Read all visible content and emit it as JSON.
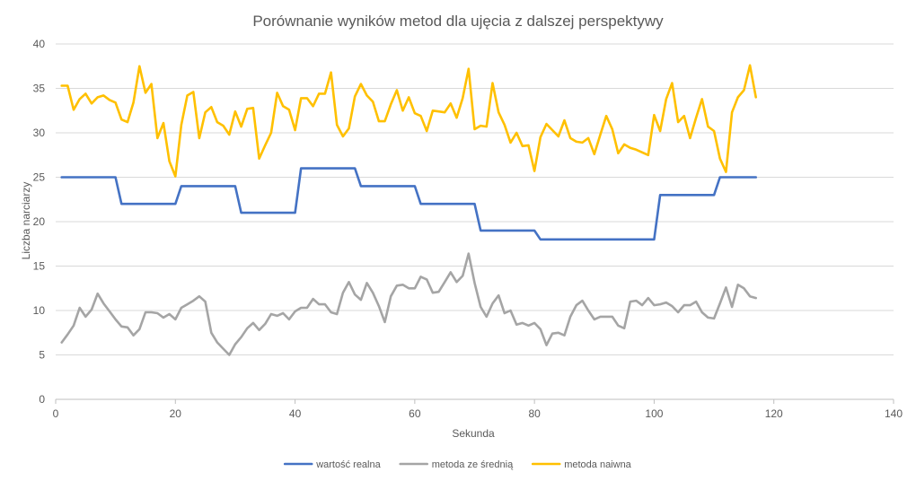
{
  "chart_data": {
    "type": "scatter",
    "title": "Porównanie wyników metod dla ujęcia z dalszej perspektywy",
    "xlabel": "Sekunda",
    "ylabel": "Liczba narciarzy",
    "xlim": [
      0,
      140
    ],
    "ylim": [
      0,
      40
    ],
    "x_ticks": [
      "0",
      "20",
      "40",
      "60",
      "80",
      "100",
      "120",
      "140"
    ],
    "y_ticks": [
      "0",
      "5",
      "10",
      "15",
      "20",
      "25",
      "30",
      "35",
      "40"
    ],
    "grid": "horizontal",
    "legend_position": "bottom",
    "series": [
      {
        "name": "wartość realna",
        "color": "#4472C4",
        "x": [
          1,
          10,
          11,
          20,
          21,
          30,
          31,
          40,
          41,
          50,
          51,
          60,
          61,
          70,
          71,
          80,
          81,
          100,
          101,
          110,
          111,
          117
        ],
        "y": [
          25,
          25,
          22,
          22,
          24,
          24,
          21,
          21,
          26,
          26,
          24,
          24,
          22,
          22,
          19,
          19,
          18,
          18,
          23,
          23,
          25,
          25
        ]
      },
      {
        "name": "metoda ze średnią",
        "color": "#A5A5A5",
        "x": [
          1,
          2,
          3,
          4,
          5,
          6,
          7,
          8,
          9,
          10,
          11,
          12,
          13,
          14,
          15,
          16,
          17,
          18,
          19,
          20,
          21,
          22,
          23,
          24,
          25,
          26,
          27,
          28,
          29,
          30,
          31,
          32,
          33,
          34,
          35,
          36,
          37,
          38,
          39,
          40,
          41,
          42,
          43,
          44,
          45,
          46,
          47,
          48,
          49,
          50,
          51,
          52,
          53,
          54,
          55,
          56,
          57,
          58,
          59,
          60,
          61,
          62,
          63,
          64,
          65,
          66,
          67,
          68,
          69,
          70,
          71,
          72,
          73,
          74,
          75,
          76,
          77,
          78,
          79,
          80,
          81,
          82,
          83,
          84,
          85,
          86,
          87,
          88,
          89,
          90,
          91,
          92,
          93,
          94,
          95,
          96,
          97,
          98,
          99,
          100,
          101,
          102,
          103,
          104,
          105,
          106,
          107,
          108,
          109,
          110,
          111,
          112,
          113,
          114,
          115,
          116,
          117
        ],
        "y": [
          6.4,
          7.3,
          8.3,
          10.3,
          9.3,
          10.1,
          11.9,
          10.8,
          9.9,
          9,
          8.2,
          8.1,
          7.2,
          7.9,
          9.8,
          9.8,
          9.7,
          9.2,
          9.6,
          9,
          10.3,
          10.7,
          11.1,
          11.6,
          11,
          7.5,
          6.4,
          5.7,
          5,
          6.2,
          7,
          8,
          8.6,
          7.8,
          8.5,
          9.6,
          9.4,
          9.7,
          9,
          9.9,
          10.3,
          10.3,
          11.3,
          10.7,
          10.7,
          9.8,
          9.6,
          12,
          13.2,
          11.8,
          11.2,
          13.1,
          12,
          10.5,
          8.7,
          11.6,
          12.8,
          12.9,
          12.5,
          12.5,
          13.8,
          13.5,
          12,
          12.1,
          13.2,
          14.3,
          13.2,
          13.9,
          16.4,
          13.1,
          10.4,
          9.3,
          10.8,
          11.7,
          9.7,
          10,
          8.4,
          8.6,
          8.3,
          8.6,
          7.9,
          6.1,
          7.4,
          7.5,
          7.2,
          9.3,
          10.6,
          11.1,
          10,
          9,
          9.3,
          9.3,
          9.3,
          8.3,
          8,
          11,
          11.1,
          10.6,
          11.4,
          10.6,
          10.7,
          10.9,
          10.5,
          9.8,
          10.6,
          10.6,
          11,
          9.8,
          9.2,
          9.1,
          10.8,
          12.6,
          10.4,
          12.9,
          12.5,
          11.6,
          11.4
        ]
      },
      {
        "name": "metoda naiwna",
        "color": "#FFC000",
        "x": [
          1,
          2,
          3,
          4,
          5,
          6,
          7,
          8,
          9,
          10,
          11,
          12,
          13,
          14,
          15,
          16,
          17,
          18,
          19,
          20,
          21,
          22,
          23,
          24,
          25,
          26,
          27,
          28,
          29,
          30,
          31,
          32,
          33,
          34,
          35,
          36,
          37,
          38,
          39,
          40,
          41,
          42,
          43,
          44,
          45,
          46,
          47,
          48,
          49,
          50,
          51,
          52,
          53,
          54,
          55,
          56,
          57,
          58,
          59,
          60,
          61,
          62,
          63,
          64,
          65,
          66,
          67,
          68,
          69,
          70,
          71,
          72,
          73,
          74,
          75,
          76,
          77,
          78,
          79,
          80,
          81,
          82,
          83,
          84,
          85,
          86,
          87,
          88,
          89,
          90,
          91,
          92,
          93,
          94,
          95,
          96,
          97,
          98,
          99,
          100,
          101,
          102,
          103,
          104,
          105,
          106,
          107,
          108,
          109,
          110,
          111,
          112,
          113,
          114,
          115,
          116,
          117
        ],
        "y": [
          35.3,
          35.3,
          32.6,
          33.8,
          34.4,
          33.3,
          34,
          34.2,
          33.7,
          33.4,
          31.5,
          31.2,
          33.4,
          37.5,
          34.5,
          35.5,
          29.4,
          31.1,
          26.8,
          25.1,
          30.9,
          34.2,
          34.6,
          29.4,
          32.3,
          32.9,
          31.2,
          30.8,
          29.8,
          32.4,
          30.7,
          32.7,
          32.8,
          27.1,
          28.6,
          30,
          34.5,
          33,
          32.6,
          30.3,
          33.9,
          33.9,
          33,
          34.4,
          34.4,
          36.8,
          30.9,
          29.6,
          30.5,
          34.1,
          35.5,
          34.2,
          33.5,
          31.3,
          31.3,
          33.2,
          34.8,
          32.5,
          34,
          32.2,
          31.9,
          30.2,
          32.5,
          32.4,
          32.3,
          33.3,
          31.7,
          33.9,
          37.2,
          30.4,
          30.8,
          30.7,
          35.6,
          32.3,
          30.9,
          28.9,
          30,
          28.5,
          28.6,
          25.7,
          29.5,
          31,
          30.3,
          29.6,
          31.4,
          29.4,
          29,
          28.9,
          29.4,
          27.6,
          29.8,
          31.9,
          30.4,
          27.7,
          28.7,
          28.3,
          28.1,
          27.8,
          27.5,
          32,
          30.2,
          33.8,
          35.6,
          31.2,
          31.9,
          29.4,
          31.7,
          33.8,
          30.7,
          30.2,
          27.1,
          25.6,
          32.3,
          34,
          34.8,
          37.6,
          34
        ]
      }
    ]
  }
}
